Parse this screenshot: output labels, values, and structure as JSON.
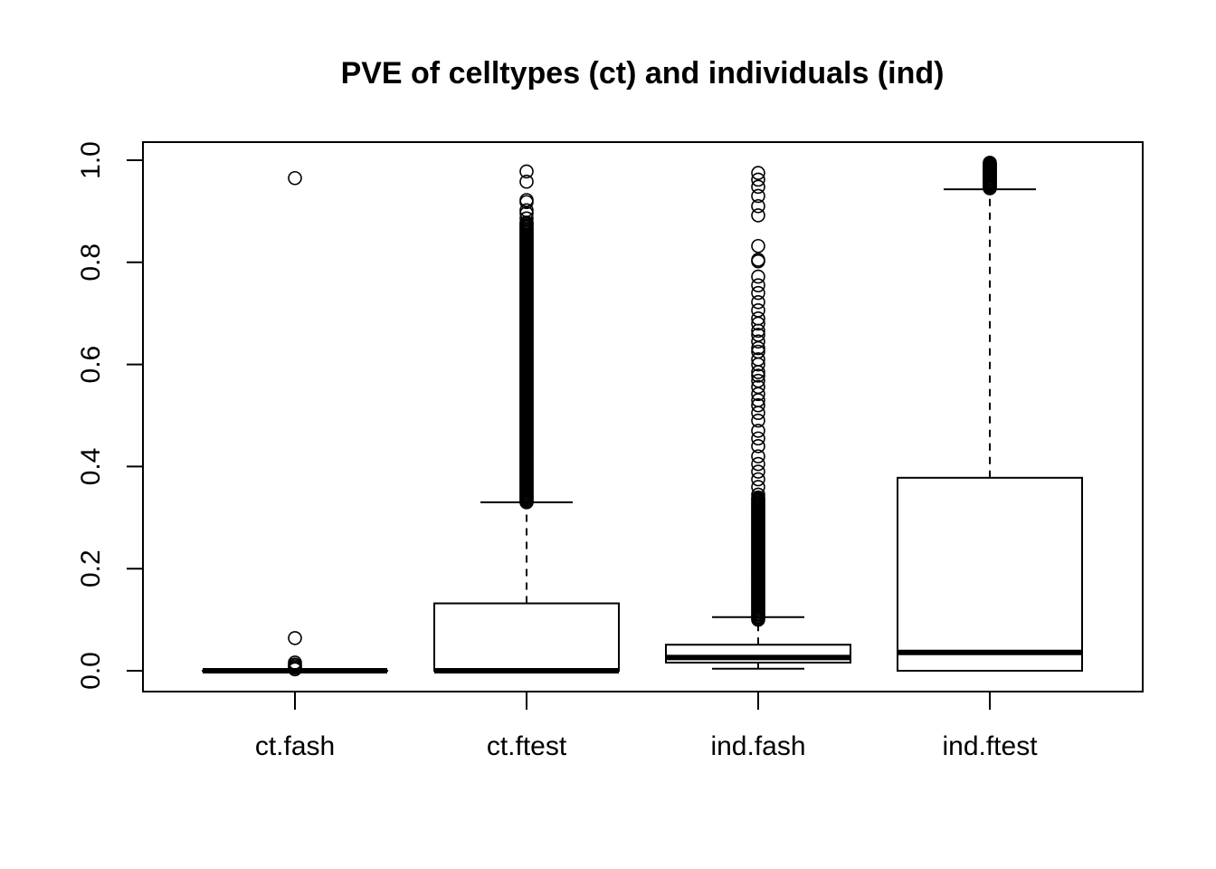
{
  "chart_data": {
    "type": "boxplot",
    "title": "PVE of celltypes (ct) and individuals (ind)",
    "xlabel": "",
    "ylabel": "",
    "ylim": [
      -0.04,
      1.04
    ],
    "yticks": [
      0.0,
      0.2,
      0.4,
      0.6,
      0.8,
      1.0
    ],
    "ytick_labels": [
      "0.0",
      "0.2",
      "0.4",
      "0.6",
      "0.8",
      "1.0"
    ],
    "categories": [
      "ct.fash",
      "ct.ftest",
      "ind.fash",
      "ind.ftest"
    ],
    "boxes": [
      {
        "name": "ct.fash",
        "whisker_low": 0.0,
        "q1": 0.0,
        "median": 0.0,
        "q3": 0.0,
        "whisker_high": 0.0,
        "outliers_discrete": [
          0.965,
          0.064,
          0.016,
          0.012,
          0.009,
          0.006,
          0.003
        ],
        "outlier_band": null
      },
      {
        "name": "ct.ftest",
        "whisker_low": 0.0,
        "q1": 0.0,
        "median": 0.0,
        "q3": 0.132,
        "whisker_high": 0.33,
        "outliers_discrete": [
          0.978,
          0.958,
          0.922,
          0.918,
          0.902,
          0.896,
          0.886
        ],
        "outlier_band": [
          0.33,
          0.88
        ]
      },
      {
        "name": "ind.fash",
        "whisker_low": 0.004,
        "q1": 0.016,
        "median": 0.026,
        "q3": 0.051,
        "whisker_high": 0.105,
        "outliers_discrete": [
          0.975,
          0.962,
          0.948,
          0.93,
          0.91,
          0.892,
          0.832,
          0.805,
          0.802,
          0.772,
          0.755,
          0.74,
          0.722,
          0.706,
          0.69,
          0.68,
          0.666,
          0.658,
          0.645,
          0.632,
          0.625,
          0.61,
          0.6,
          0.585,
          0.578,
          0.568,
          0.556,
          0.542,
          0.53,
          0.52,
          0.505,
          0.49,
          0.47,
          0.455,
          0.44,
          0.42,
          0.405,
          0.39,
          0.375,
          0.36,
          0.345
        ],
        "outlier_band": [
          0.1,
          0.34
        ]
      },
      {
        "name": "ind.ftest",
        "whisker_low": 0.0,
        "q1": 0.0,
        "median": 0.036,
        "q3": 0.378,
        "whisker_high": 0.943,
        "outliers_discrete": [
          0.995,
          0.99,
          0.985,
          0.98,
          0.975,
          0.97,
          0.965,
          0.96,
          0.955,
          0.95
        ],
        "outlier_band": [
          0.945,
          0.995
        ]
      }
    ],
    "grid": false,
    "legend": "none",
    "colors": {
      "stroke": "#000000",
      "fill": "#ffffff"
    }
  }
}
